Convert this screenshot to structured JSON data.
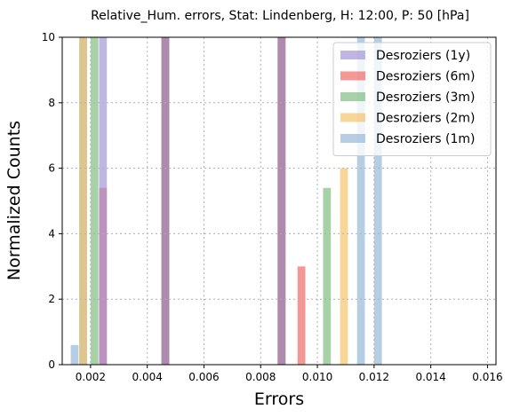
{
  "chart_data": {
    "type": "histogram",
    "title": "Relative_Hum. errors, Stat: Lindenberg, H: 12:00, P: 50 [hPa]",
    "xlabel": "Errors",
    "ylabel": "Normalized Counts",
    "xlim": [
      0.001,
      0.0163
    ],
    "ylim": [
      0,
      10
    ],
    "xticks": [
      0.002,
      0.004,
      0.006,
      0.008,
      0.01,
      0.012,
      0.014,
      0.016
    ],
    "xtick_labels": [
      "0.002",
      "0.004",
      "0.006",
      "0.008",
      "0.010",
      "0.012",
      "0.014",
      "0.016"
    ],
    "yticks": [
      0,
      2,
      4,
      6,
      8,
      10
    ],
    "ytick_labels": [
      "0",
      "2",
      "4",
      "6",
      "8",
      "10"
    ],
    "grid": true,
    "legend_position": "top-right",
    "bin_width": 0.000275,
    "series": [
      {
        "name": "Desroziers (1y)",
        "color": "#9d8fd6",
        "alpha": 0.65,
        "bins": [
          [
            0.0023,
            10
          ],
          [
            0.0045,
            10
          ],
          [
            0.0086,
            10
          ]
        ]
      },
      {
        "name": "Desroziers (6m)",
        "color": "#f0605a",
        "alpha": 0.65,
        "bins": [
          [
            0.0023,
            5.4
          ],
          [
            0.0045,
            10
          ],
          [
            0.0086,
            10
          ],
          [
            0.0093,
            3.0
          ]
        ]
      },
      {
        "name": "Desroziers (3m)",
        "color": "#78b878",
        "alpha": 0.65,
        "bins": [
          [
            0.002,
            10
          ],
          [
            0.0045,
            10
          ],
          [
            0.0086,
            10
          ],
          [
            0.0102,
            5.4
          ]
        ]
      },
      {
        "name": "Desroziers (2m)",
        "color": "#f5c060",
        "alpha": 0.65,
        "bins": [
          [
            0.0016,
            10
          ],
          [
            0.0045,
            10
          ],
          [
            0.0086,
            10
          ],
          [
            0.0108,
            6.0
          ]
        ]
      },
      {
        "name": "Desroziers (1m)",
        "color": "#8fb3d6",
        "alpha": 0.65,
        "bins": [
          [
            0.0013,
            0.6
          ],
          [
            0.0016,
            10
          ],
          [
            0.0045,
            10
          ],
          [
            0.0086,
            10
          ],
          [
            0.0114,
            10
          ],
          [
            0.012,
            10
          ]
        ]
      }
    ]
  }
}
